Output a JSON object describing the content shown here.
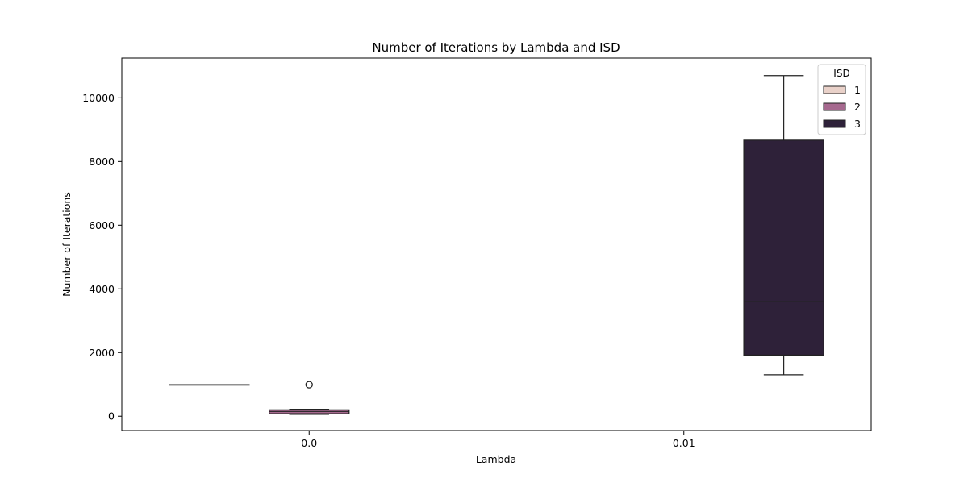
{
  "chart_data": {
    "type": "box",
    "title": "Number of Iterations by Lambda and ISD",
    "xlabel": "Lambda",
    "ylabel": "Number of Iterations",
    "categories": [
      "0.0",
      "0.01"
    ],
    "ylim": [
      -450,
      11250
    ],
    "yticks": [
      0,
      2000,
      4000,
      6000,
      8000,
      10000
    ],
    "grid": false,
    "legend": {
      "title": "ISD",
      "placement": "top-right",
      "entries": [
        "1",
        "2",
        "3"
      ]
    },
    "series": [
      {
        "name": "1",
        "color": "#e9d1c9",
        "boxes": [
          {
            "category": "0.0",
            "whisker_low": 990,
            "q1": 990,
            "median": 990,
            "q3": 990,
            "whisker_high": 990,
            "outliers": []
          }
        ]
      },
      {
        "name": "2",
        "color": "#a6698f",
        "boxes": [
          {
            "category": "0.0",
            "whisker_low": 60,
            "q1": 80,
            "median": 150,
            "q3": 200,
            "whisker_high": 220,
            "outliers": [
              990
            ]
          }
        ]
      },
      {
        "name": "3",
        "color": "#2e2139",
        "boxes": [
          {
            "category": "0.01",
            "whisker_low": 1300,
            "q1": 1920,
            "median": 3600,
            "q3": 8670,
            "whisker_high": 10700,
            "outliers": []
          }
        ]
      }
    ]
  }
}
